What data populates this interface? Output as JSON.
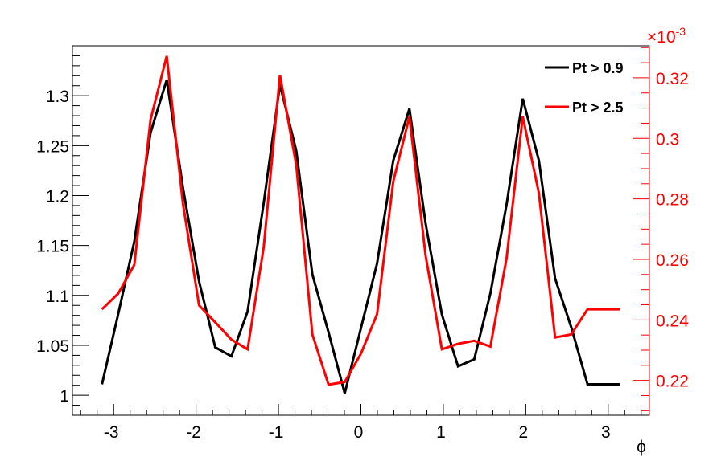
{
  "chart_data": {
    "type": "line",
    "title": "",
    "xlabel": "ϕ",
    "ylabel": "",
    "y2label": "",
    "y2_exponent_label": "×10",
    "y2_exponent_power": "-3",
    "xlim": [
      -3.5,
      3.5
    ],
    "ylim": [
      0.98,
      1.35
    ],
    "y2lim": [
      0.2085,
      0.3306
    ],
    "grid": false,
    "legend_position": "top-right",
    "x_ticks": [
      -3,
      -2,
      -1,
      0,
      1,
      2,
      3
    ],
    "x_tick_labels": [
      "-3",
      "-2",
      "-1",
      "0",
      "1",
      "2",
      "3"
    ],
    "y_ticks": [
      1,
      1.05,
      1.1,
      1.15,
      1.2,
      1.25,
      1.3
    ],
    "y_tick_labels": [
      "1",
      "1.05",
      "1.1",
      "1.15",
      "1.2",
      "1.25",
      "1.3"
    ],
    "y2_ticks": [
      0.22,
      0.24,
      0.26,
      0.28,
      0.3,
      0.32
    ],
    "y2_tick_labels": [
      "0.22",
      "0.24",
      "0.26",
      "0.28",
      "0.3",
      "0.32"
    ],
    "series": [
      {
        "name": "Pt > 0.9",
        "color": "#000000",
        "axis": "left",
        "x": [
          -3.1416,
          -2.9452,
          -2.7489,
          -2.5525,
          -2.3562,
          -2.1598,
          -1.9635,
          -1.7671,
          -1.5708,
          -1.3744,
          -1.1781,
          -0.9817,
          -0.7854,
          -0.589,
          -0.3927,
          -0.1963,
          0.0,
          0.1963,
          0.3927,
          0.589,
          0.7854,
          0.9817,
          1.1781,
          1.3744,
          1.5708,
          1.7671,
          1.9635,
          2.1598,
          2.3562,
          2.5525,
          2.7489,
          2.9452,
          3.1416
        ],
        "values": [
          1.011,
          1.081,
          1.154,
          1.263,
          1.316,
          1.208,
          1.114,
          1.048,
          1.039,
          1.084,
          1.193,
          1.311,
          1.245,
          1.121,
          1.063,
          1.002,
          1.067,
          1.132,
          1.235,
          1.287,
          1.172,
          1.081,
          1.029,
          1.036,
          1.102,
          1.191,
          1.297,
          1.235,
          1.117,
          1.068,
          1.011,
          1.011,
          1.011
        ]
      },
      {
        "name": "Pt > 2.5",
        "color": "#ff0000",
        "axis": "right",
        "x": [
          -3.1416,
          -2.9452,
          -2.7489,
          -2.5525,
          -2.3562,
          -2.1598,
          -1.9635,
          -1.7671,
          -1.5708,
          -1.3744,
          -1.1781,
          -0.9817,
          -0.7854,
          -0.589,
          -0.3927,
          -0.1963,
          0.0,
          0.1963,
          0.3927,
          0.589,
          0.7854,
          0.9817,
          1.1781,
          1.3744,
          1.5708,
          1.7671,
          1.9635,
          2.1598,
          2.3562,
          2.5525,
          2.7489,
          2.9452,
          3.1416
        ],
        "values": [
          0.2435,
          0.2487,
          0.2582,
          0.3062,
          0.3272,
          0.2785,
          0.2448,
          0.2392,
          0.2335,
          0.2303,
          0.2642,
          0.3209,
          0.2913,
          0.2352,
          0.2186,
          0.2195,
          0.2288,
          0.2419,
          0.2857,
          0.3072,
          0.2613,
          0.2303,
          0.2321,
          0.2331,
          0.2312,
          0.2603,
          0.3072,
          0.2819,
          0.2342,
          0.2352,
          0.2435,
          0.2435,
          0.2435
        ]
      }
    ]
  }
}
